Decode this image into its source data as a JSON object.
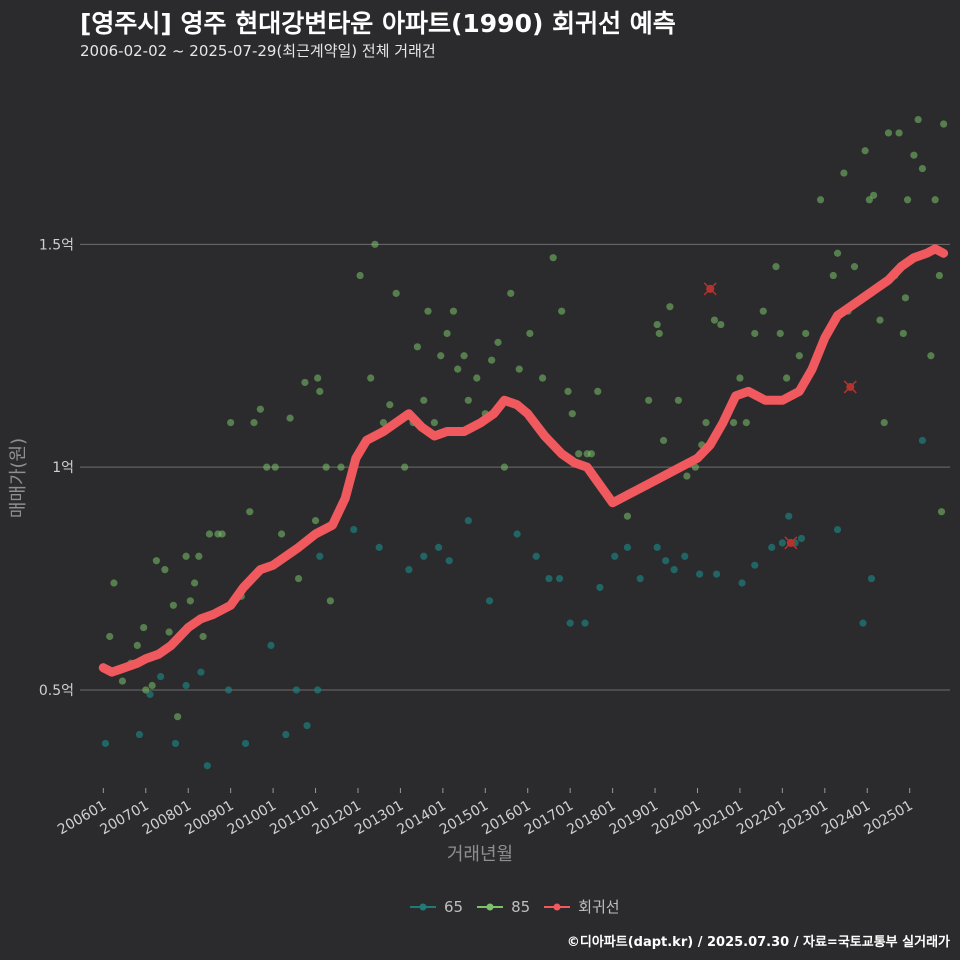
{
  "header": {
    "title": "[영주시] 영주 현대강변타운 아파트(1990) 회귀선 예측",
    "subtitle": "2006-02-02 ~ 2025-07-29(최근계약일) 전체 거래건"
  },
  "footer": {
    "credit": "©디아파트(dapt.kr) / 2025.07.30 / 자료=국토교통부 실거래가"
  },
  "chart_data": {
    "type": "scatter",
    "title": "[영주시] 영주 현대강변타운 아파트(1990) 회귀선 예측",
    "subtitle": "2006-02-02 ~ 2025-07-29(최근계약일) 전체 거래건",
    "xlabel": "거래년월",
    "ylabel": "매매가(원)",
    "x_unit": "year (decimal)",
    "y_unit": "억",
    "xlim": [
      2005.45,
      2025.95
    ],
    "ylim": [
      0.28,
      1.88
    ],
    "x_ticks": [
      {
        "value": 2006,
        "label": "200601"
      },
      {
        "value": 2007,
        "label": "200701"
      },
      {
        "value": 2008,
        "label": "200801"
      },
      {
        "value": 2009,
        "label": "200901"
      },
      {
        "value": 2010,
        "label": "201001"
      },
      {
        "value": 2011,
        "label": "201101"
      },
      {
        "value": 2012,
        "label": "201201"
      },
      {
        "value": 2013,
        "label": "201301"
      },
      {
        "value": 2014,
        "label": "201401"
      },
      {
        "value": 2015,
        "label": "201501"
      },
      {
        "value": 2016,
        "label": "201601"
      },
      {
        "value": 2017,
        "label": "201701"
      },
      {
        "value": 2018,
        "label": "201801"
      },
      {
        "value": 2019,
        "label": "201901"
      },
      {
        "value": 2020,
        "label": "202001"
      },
      {
        "value": 2021,
        "label": "202101"
      },
      {
        "value": 2022,
        "label": "202201"
      },
      {
        "value": 2023,
        "label": "202301"
      },
      {
        "value": 2024,
        "label": "202401"
      },
      {
        "value": 2025,
        "label": "202501"
      }
    ],
    "y_ticks": [
      {
        "value": 0.5,
        "label": "0.5억"
      },
      {
        "value": 1.0,
        "label": "1억"
      },
      {
        "value": 1.5,
        "label": "1.5억"
      }
    ],
    "grid": "horizontal",
    "legend_position": "bottom",
    "colors": {
      "background": "#2b2b2d",
      "s65": "#1f7a78",
      "s85": "#7cc26a",
      "regression": "#f0595e",
      "grid": "#6e6e6e",
      "highlight": "#b5332e"
    },
    "series": [
      {
        "name": "65",
        "points": [
          [
            2006.05,
            0.38
          ],
          [
            2006.85,
            0.4
          ],
          [
            2007.1,
            0.49
          ],
          [
            2007.35,
            0.53
          ],
          [
            2007.7,
            0.38
          ],
          [
            2007.95,
            0.51
          ],
          [
            2008.3,
            0.54
          ],
          [
            2008.45,
            0.33
          ],
          [
            2008.95,
            0.5
          ],
          [
            2009.35,
            0.38
          ],
          [
            2009.95,
            0.6
          ],
          [
            2010.3,
            0.4
          ],
          [
            2010.55,
            0.5
          ],
          [
            2010.8,
            0.42
          ],
          [
            2011.05,
            0.5
          ],
          [
            2011.1,
            0.8
          ],
          [
            2011.9,
            0.86
          ],
          [
            2012.5,
            0.82
          ],
          [
            2013.2,
            0.77
          ],
          [
            2013.55,
            0.8
          ],
          [
            2013.9,
            0.82
          ],
          [
            2014.15,
            0.79
          ],
          [
            2014.6,
            0.88
          ],
          [
            2015.1,
            0.7
          ],
          [
            2015.75,
            0.85
          ],
          [
            2016.2,
            0.8
          ],
          [
            2016.5,
            0.75
          ],
          [
            2016.75,
            0.75
          ],
          [
            2017.0,
            0.65
          ],
          [
            2017.35,
            0.65
          ],
          [
            2017.7,
            0.73
          ],
          [
            2018.05,
            0.8
          ],
          [
            2018.35,
            0.82
          ],
          [
            2018.65,
            0.75
          ],
          [
            2019.05,
            0.82
          ],
          [
            2019.25,
            0.79
          ],
          [
            2019.45,
            0.77
          ],
          [
            2019.7,
            0.8
          ],
          [
            2020.05,
            0.76
          ],
          [
            2020.45,
            0.76
          ],
          [
            2021.05,
            0.74
          ],
          [
            2021.35,
            0.78
          ],
          [
            2021.75,
            0.82
          ],
          [
            2022.0,
            0.83
          ],
          [
            2022.15,
            0.89
          ],
          [
            2022.3,
            0.83
          ],
          [
            2022.45,
            0.84
          ],
          [
            2023.3,
            0.86
          ],
          [
            2023.9,
            0.65
          ],
          [
            2024.1,
            0.75
          ],
          [
            2025.3,
            1.06
          ]
        ]
      },
      {
        "name": "85",
        "points": [
          [
            2006.15,
            0.62
          ],
          [
            2006.25,
            0.74
          ],
          [
            2006.45,
            0.52
          ],
          [
            2006.65,
            0.56
          ],
          [
            2006.8,
            0.6
          ],
          [
            2006.95,
            0.64
          ],
          [
            2007.0,
            0.5
          ],
          [
            2007.15,
            0.51
          ],
          [
            2007.25,
            0.79
          ],
          [
            2007.45,
            0.77
          ],
          [
            2007.55,
            0.63
          ],
          [
            2007.65,
            0.69
          ],
          [
            2007.75,
            0.44
          ],
          [
            2007.95,
            0.8
          ],
          [
            2008.05,
            0.7
          ],
          [
            2008.15,
            0.74
          ],
          [
            2008.25,
            0.8
          ],
          [
            2008.35,
            0.62
          ],
          [
            2008.5,
            0.85
          ],
          [
            2008.7,
            0.85
          ],
          [
            2008.8,
            0.85
          ],
          [
            2009.0,
            1.1
          ],
          [
            2009.25,
            0.71
          ],
          [
            2009.45,
            0.9
          ],
          [
            2009.55,
            1.1
          ],
          [
            2009.7,
            1.13
          ],
          [
            2009.85,
            1.0
          ],
          [
            2010.05,
            1.0
          ],
          [
            2010.2,
            0.85
          ],
          [
            2010.4,
            1.11
          ],
          [
            2010.6,
            0.75
          ],
          [
            2010.75,
            1.19
          ],
          [
            2011.0,
            0.88
          ],
          [
            2011.05,
            1.2
          ],
          [
            2011.1,
            1.17
          ],
          [
            2011.25,
            1.0
          ],
          [
            2011.35,
            0.7
          ],
          [
            2011.6,
            1.0
          ],
          [
            2012.05,
            1.43
          ],
          [
            2012.3,
            1.2
          ],
          [
            2012.4,
            1.5
          ],
          [
            2012.6,
            1.1
          ],
          [
            2012.75,
            1.14
          ],
          [
            2012.9,
            1.39
          ],
          [
            2013.1,
            1.0
          ],
          [
            2013.3,
            1.1
          ],
          [
            2013.4,
            1.27
          ],
          [
            2013.55,
            1.15
          ],
          [
            2013.65,
            1.35
          ],
          [
            2013.8,
            1.1
          ],
          [
            2013.95,
            1.25
          ],
          [
            2014.1,
            1.3
          ],
          [
            2014.25,
            1.35
          ],
          [
            2014.35,
            1.22
          ],
          [
            2014.5,
            1.25
          ],
          [
            2014.6,
            1.15
          ],
          [
            2014.8,
            1.2
          ],
          [
            2015.0,
            1.12
          ],
          [
            2015.15,
            1.24
          ],
          [
            2015.3,
            1.28
          ],
          [
            2015.45,
            1.0
          ],
          [
            2015.6,
            1.39
          ],
          [
            2015.8,
            1.22
          ],
          [
            2016.05,
            1.3
          ],
          [
            2016.35,
            1.2
          ],
          [
            2016.6,
            1.47
          ],
          [
            2016.8,
            1.35
          ],
          [
            2016.95,
            1.17
          ],
          [
            2017.05,
            1.12
          ],
          [
            2017.2,
            1.03
          ],
          [
            2017.4,
            1.03
          ],
          [
            2017.5,
            1.03
          ],
          [
            2017.65,
            1.17
          ],
          [
            2018.35,
            0.89
          ],
          [
            2018.6,
            0.95
          ],
          [
            2018.85,
            1.15
          ],
          [
            2019.05,
            1.32
          ],
          [
            2019.1,
            1.3
          ],
          [
            2019.2,
            1.06
          ],
          [
            2019.35,
            1.36
          ],
          [
            2019.55,
            1.15
          ],
          [
            2019.75,
            0.98
          ],
          [
            2019.95,
            1.0
          ],
          [
            2020.1,
            1.05
          ],
          [
            2020.2,
            1.1
          ],
          [
            2020.4,
            1.33
          ],
          [
            2020.55,
            1.32
          ],
          [
            2020.85,
            1.1
          ],
          [
            2021.0,
            1.2
          ],
          [
            2021.15,
            1.1
          ],
          [
            2021.35,
            1.3
          ],
          [
            2021.55,
            1.35
          ],
          [
            2021.85,
            1.45
          ],
          [
            2021.95,
            1.3
          ],
          [
            2022.1,
            1.2
          ],
          [
            2022.4,
            1.25
          ],
          [
            2022.55,
            1.3
          ],
          [
            2022.9,
            1.6
          ],
          [
            2023.2,
            1.43
          ],
          [
            2023.3,
            1.48
          ],
          [
            2023.45,
            1.66
          ],
          [
            2023.55,
            1.35
          ],
          [
            2023.7,
            1.45
          ],
          [
            2023.95,
            1.71
          ],
          [
            2024.05,
            1.6
          ],
          [
            2024.15,
            1.61
          ],
          [
            2024.3,
            1.33
          ],
          [
            2024.4,
            1.1
          ],
          [
            2024.5,
            1.75
          ],
          [
            2024.65,
            1.43
          ],
          [
            2024.75,
            1.75
          ],
          [
            2024.85,
            1.3
          ],
          [
            2024.9,
            1.38
          ],
          [
            2024.95,
            1.6
          ],
          [
            2025.1,
            1.7
          ],
          [
            2025.2,
            1.78
          ],
          [
            2025.3,
            1.67
          ],
          [
            2025.5,
            1.25
          ],
          [
            2025.6,
            1.6
          ],
          [
            2025.7,
            1.43
          ],
          [
            2025.75,
            0.9
          ],
          [
            2025.8,
            1.77
          ]
        ]
      },
      {
        "name": "회귀선",
        "points": [
          [
            2006.0,
            0.55
          ],
          [
            2006.2,
            0.54
          ],
          [
            2006.5,
            0.55
          ],
          [
            2006.8,
            0.56
          ],
          [
            2007.0,
            0.57
          ],
          [
            2007.3,
            0.58
          ],
          [
            2007.6,
            0.6
          ],
          [
            2008.0,
            0.64
          ],
          [
            2008.3,
            0.66
          ],
          [
            2008.6,
            0.67
          ],
          [
            2009.0,
            0.69
          ],
          [
            2009.3,
            0.73
          ],
          [
            2009.7,
            0.77
          ],
          [
            2010.0,
            0.78
          ],
          [
            2010.3,
            0.8
          ],
          [
            2010.6,
            0.82
          ],
          [
            2011.0,
            0.85
          ],
          [
            2011.4,
            0.87
          ],
          [
            2011.7,
            0.93
          ],
          [
            2011.95,
            1.02
          ],
          [
            2012.2,
            1.06
          ],
          [
            2012.6,
            1.08
          ],
          [
            2012.9,
            1.1
          ],
          [
            2013.2,
            1.12
          ],
          [
            2013.5,
            1.09
          ],
          [
            2013.8,
            1.07
          ],
          [
            2014.1,
            1.08
          ],
          [
            2014.5,
            1.08
          ],
          [
            2014.9,
            1.1
          ],
          [
            2015.2,
            1.12
          ],
          [
            2015.45,
            1.15
          ],
          [
            2015.75,
            1.14
          ],
          [
            2016.0,
            1.12
          ],
          [
            2016.4,
            1.07
          ],
          [
            2016.8,
            1.03
          ],
          [
            2017.1,
            1.01
          ],
          [
            2017.4,
            1.0
          ],
          [
            2017.7,
            0.96
          ],
          [
            2018.0,
            0.92
          ],
          [
            2018.4,
            0.94
          ],
          [
            2018.8,
            0.96
          ],
          [
            2019.2,
            0.98
          ],
          [
            2019.6,
            1.0
          ],
          [
            2020.0,
            1.02
          ],
          [
            2020.3,
            1.05
          ],
          [
            2020.6,
            1.1
          ],
          [
            2020.9,
            1.16
          ],
          [
            2021.2,
            1.17
          ],
          [
            2021.6,
            1.15
          ],
          [
            2022.0,
            1.15
          ],
          [
            2022.4,
            1.17
          ],
          [
            2022.7,
            1.22
          ],
          [
            2023.0,
            1.29
          ],
          [
            2023.3,
            1.34
          ],
          [
            2023.6,
            1.36
          ],
          [
            2023.9,
            1.38
          ],
          [
            2024.2,
            1.4
          ],
          [
            2024.5,
            1.42
          ],
          [
            2024.8,
            1.45
          ],
          [
            2025.1,
            1.47
          ],
          [
            2025.4,
            1.48
          ],
          [
            2025.6,
            1.49
          ],
          [
            2025.8,
            1.48
          ]
        ]
      }
    ],
    "highlighted": [
      [
        2020.3,
        1.4
      ],
      [
        2022.2,
        0.83
      ],
      [
        2023.6,
        1.18
      ]
    ]
  }
}
